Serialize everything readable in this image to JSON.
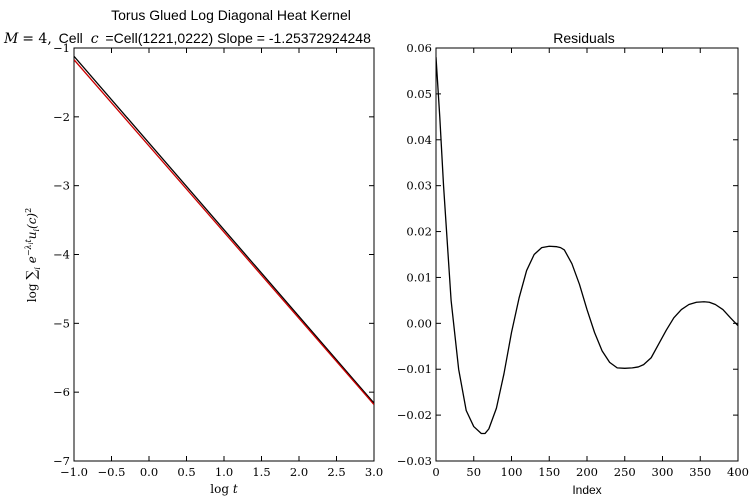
{
  "chart_data": [
    {
      "type": "line",
      "title": "Torus Glued Log Diagonal Heat Kernel",
      "subtitle": "M = 4, Cell c =Cell(1221,0222) Slope = -1.25372924248",
      "subtitle_math_prefix": "M",
      "subtitle_equals_four": "= 4,",
      "subtitle_cell_word": "Cell",
      "subtitle_c": "c",
      "subtitle_rest": "=Cell(1221,0222) Slope = -1.25372924248",
      "xlabel": "log t",
      "ylabel": "log ∑ᵢ e^(−λᵢ t) uᵢ(c)²",
      "xlim": [
        -1.0,
        3.0
      ],
      "ylim": [
        -7,
        -1
      ],
      "xticks": [
        "−1.0",
        "−0.5",
        "0.0",
        "0.5",
        "1.0",
        "1.5",
        "2.0",
        "2.5",
        "3.0"
      ],
      "yticks": [
        "−1",
        "−2",
        "−3",
        "−4",
        "−5",
        "−6",
        "−7"
      ],
      "grid": false,
      "series": [
        {
          "color": "#000000",
          "x": [
            -1.0,
            3.0
          ],
          "y": [
            -1.12,
            -6.16
          ]
        },
        {
          "color": "#cc0000",
          "x": [
            -1.0,
            3.0
          ],
          "y": [
            -1.17,
            -6.18
          ]
        }
      ]
    },
    {
      "type": "line",
      "title": "Residuals",
      "xlabel": "Index",
      "ylabel": "",
      "xlim": [
        0,
        400
      ],
      "ylim": [
        -0.03,
        0.06
      ],
      "xticks": [
        "0",
        "50",
        "100",
        "150",
        "200",
        "250",
        "300",
        "350",
        "400"
      ],
      "yticks": [
        "0.06",
        "0.05",
        "0.04",
        "0.03",
        "0.02",
        "0.01",
        "0.00",
        "−0.01",
        "−0.02",
        "−0.03"
      ],
      "grid": false,
      "series": [
        {
          "color": "#000000",
          "x": [
            0,
            5,
            10,
            20,
            30,
            40,
            50,
            60,
            65,
            70,
            80,
            90,
            100,
            110,
            120,
            130,
            140,
            150,
            160,
            165,
            170,
            180,
            190,
            200,
            210,
            220,
            230,
            240,
            250,
            260,
            268,
            275,
            285,
            295,
            305,
            315,
            325,
            335,
            345,
            355,
            362,
            370,
            380,
            390,
            400
          ],
          "y": [
            0.058,
            0.045,
            0.03,
            0.005,
            -0.01,
            -0.019,
            -0.0225,
            -0.024,
            -0.024,
            -0.023,
            -0.0185,
            -0.011,
            -0.002,
            0.0055,
            0.0115,
            0.015,
            0.0165,
            0.0168,
            0.0167,
            0.0165,
            0.016,
            0.013,
            0.0085,
            0.003,
            -0.002,
            -0.006,
            -0.0085,
            -0.0097,
            -0.0098,
            -0.0097,
            -0.0095,
            -0.009,
            -0.0075,
            -0.0045,
            -0.0015,
            0.0012,
            0.003,
            0.0041,
            0.0046,
            0.0047,
            0.0046,
            0.0041,
            0.003,
            0.0012,
            -0.0005
          ]
        }
      ]
    }
  ]
}
